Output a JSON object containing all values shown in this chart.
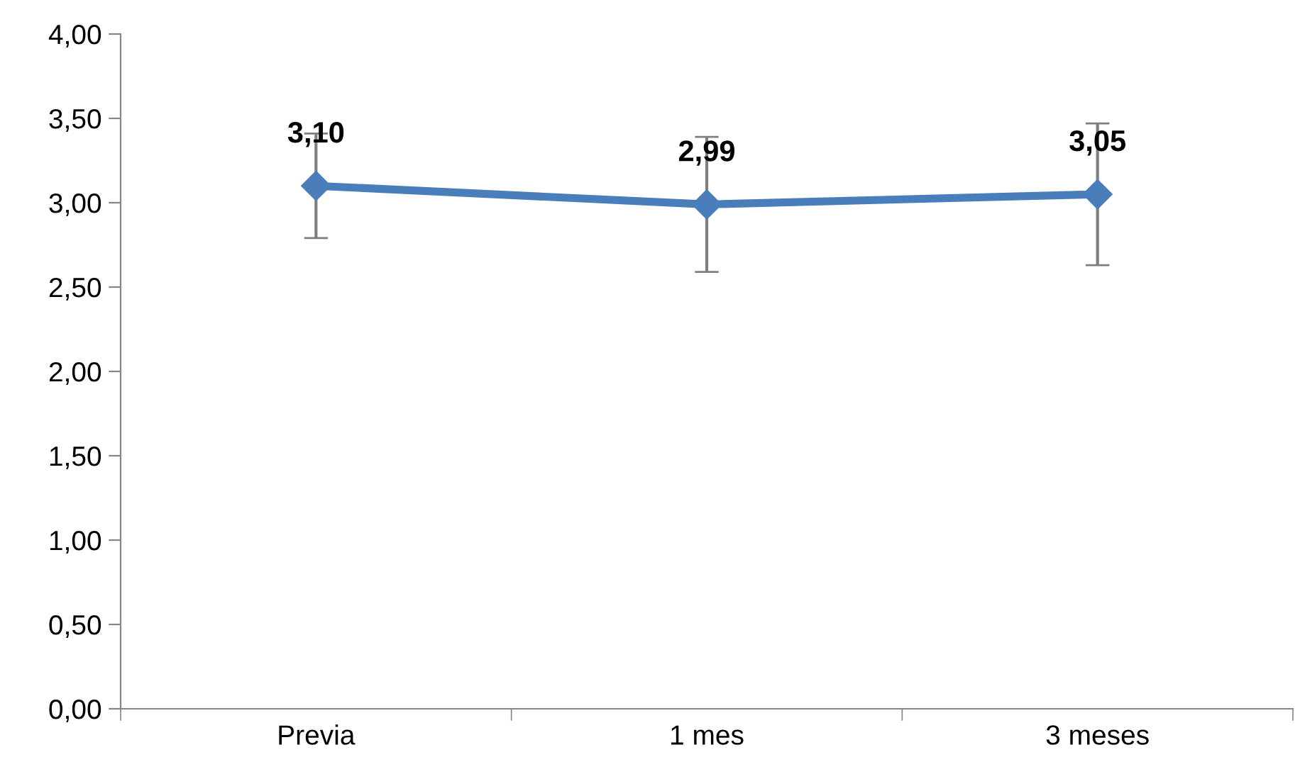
{
  "chart_data": {
    "type": "line",
    "categories": [
      "Previa",
      "1 mes",
      "3 meses"
    ],
    "series": [
      {
        "color": "#4a7ebb",
        "values": [
          3.1,
          2.99,
          3.05
        ],
        "errors": [
          0.31,
          0.4,
          0.42
        ],
        "value_labels": [
          "3,10",
          "2,99",
          "3,05"
        ]
      }
    ],
    "ylim": [
      0,
      4
    ],
    "yticks": [
      {
        "value": 0,
        "label": "0,00"
      },
      {
        "value": 0.5,
        "label": "0,50"
      },
      {
        "value": 1,
        "label": "1,00"
      },
      {
        "value": 1.5,
        "label": "1,50"
      },
      {
        "value": 2,
        "label": "2,00"
      },
      {
        "value": 2.5,
        "label": "2,50"
      },
      {
        "value": 3,
        "label": "3,00"
      },
      {
        "value": 3.5,
        "label": "3,50"
      },
      {
        "value": 4,
        "label": "4,00"
      }
    ],
    "marker": "diamond",
    "line_style": "solid",
    "grid": false,
    "legend": false
  }
}
